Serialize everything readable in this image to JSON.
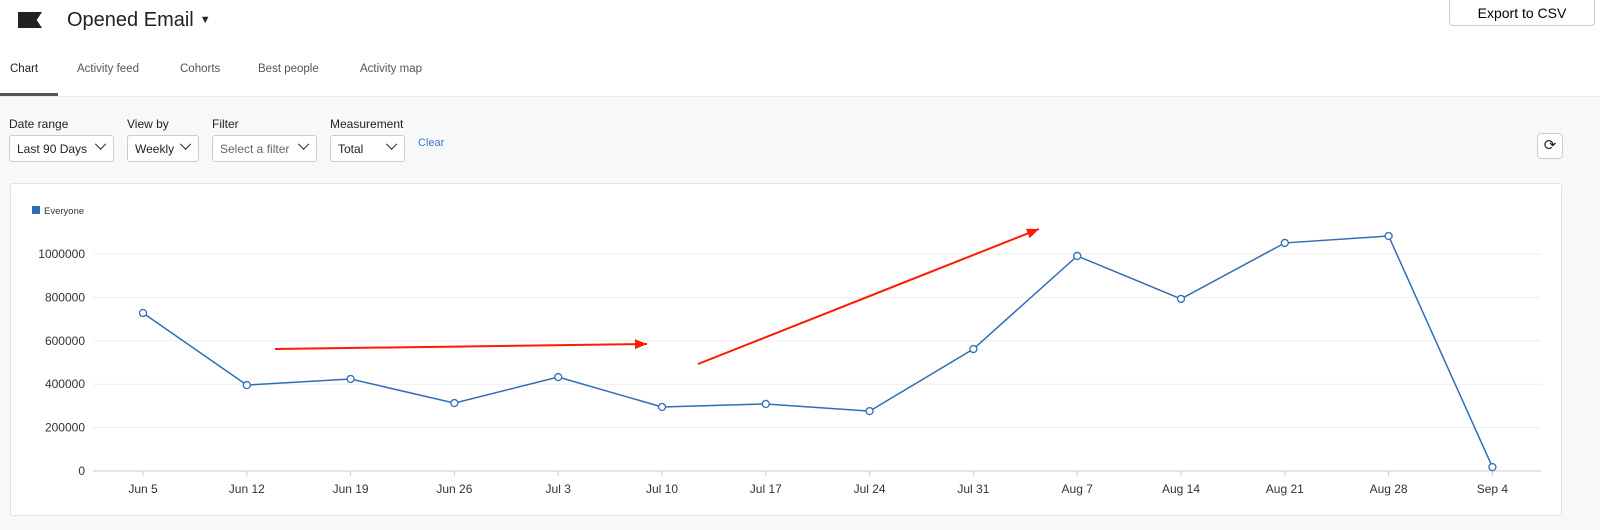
{
  "header": {
    "title": "Opened Email",
    "export_label": "Export to CSV"
  },
  "tabs": [
    "Chart",
    "Activity feed",
    "Cohorts",
    "Best people",
    "Activity map"
  ],
  "filters": {
    "date_range": {
      "label": "Date range",
      "value": "Last 90 Days"
    },
    "view_by": {
      "label": "View by",
      "value": "Weekly"
    },
    "filter": {
      "label": "Filter",
      "value": "Select a filter"
    },
    "measurement": {
      "label": "Measurement",
      "value": "Total"
    },
    "clear_label": "Clear"
  },
  "chart_data": {
    "type": "line",
    "categories": [
      "Jun 5",
      "Jun 12",
      "Jun 19",
      "Jun 26",
      "Jul 3",
      "Jul 10",
      "Jul 17",
      "Jul 24",
      "Jul 31",
      "Aug 7",
      "Aug 14",
      "Aug 21",
      "Aug 28",
      "Sep 4"
    ],
    "series": [
      {
        "name": "Everyone",
        "color": "#2f6db5",
        "values": [
          728000,
          396000,
          424000,
          313000,
          433000,
          295000,
          309000,
          276000,
          562000,
          991000,
          793000,
          1051000,
          1083000,
          18000
        ]
      }
    ],
    "yticks": [
      0,
      200000,
      400000,
      600000,
      800000,
      1000000
    ],
    "ylim": [
      0,
      1100000
    ],
    "grid": true,
    "legend": "top-left",
    "annotation_color": "#ff1a00"
  }
}
